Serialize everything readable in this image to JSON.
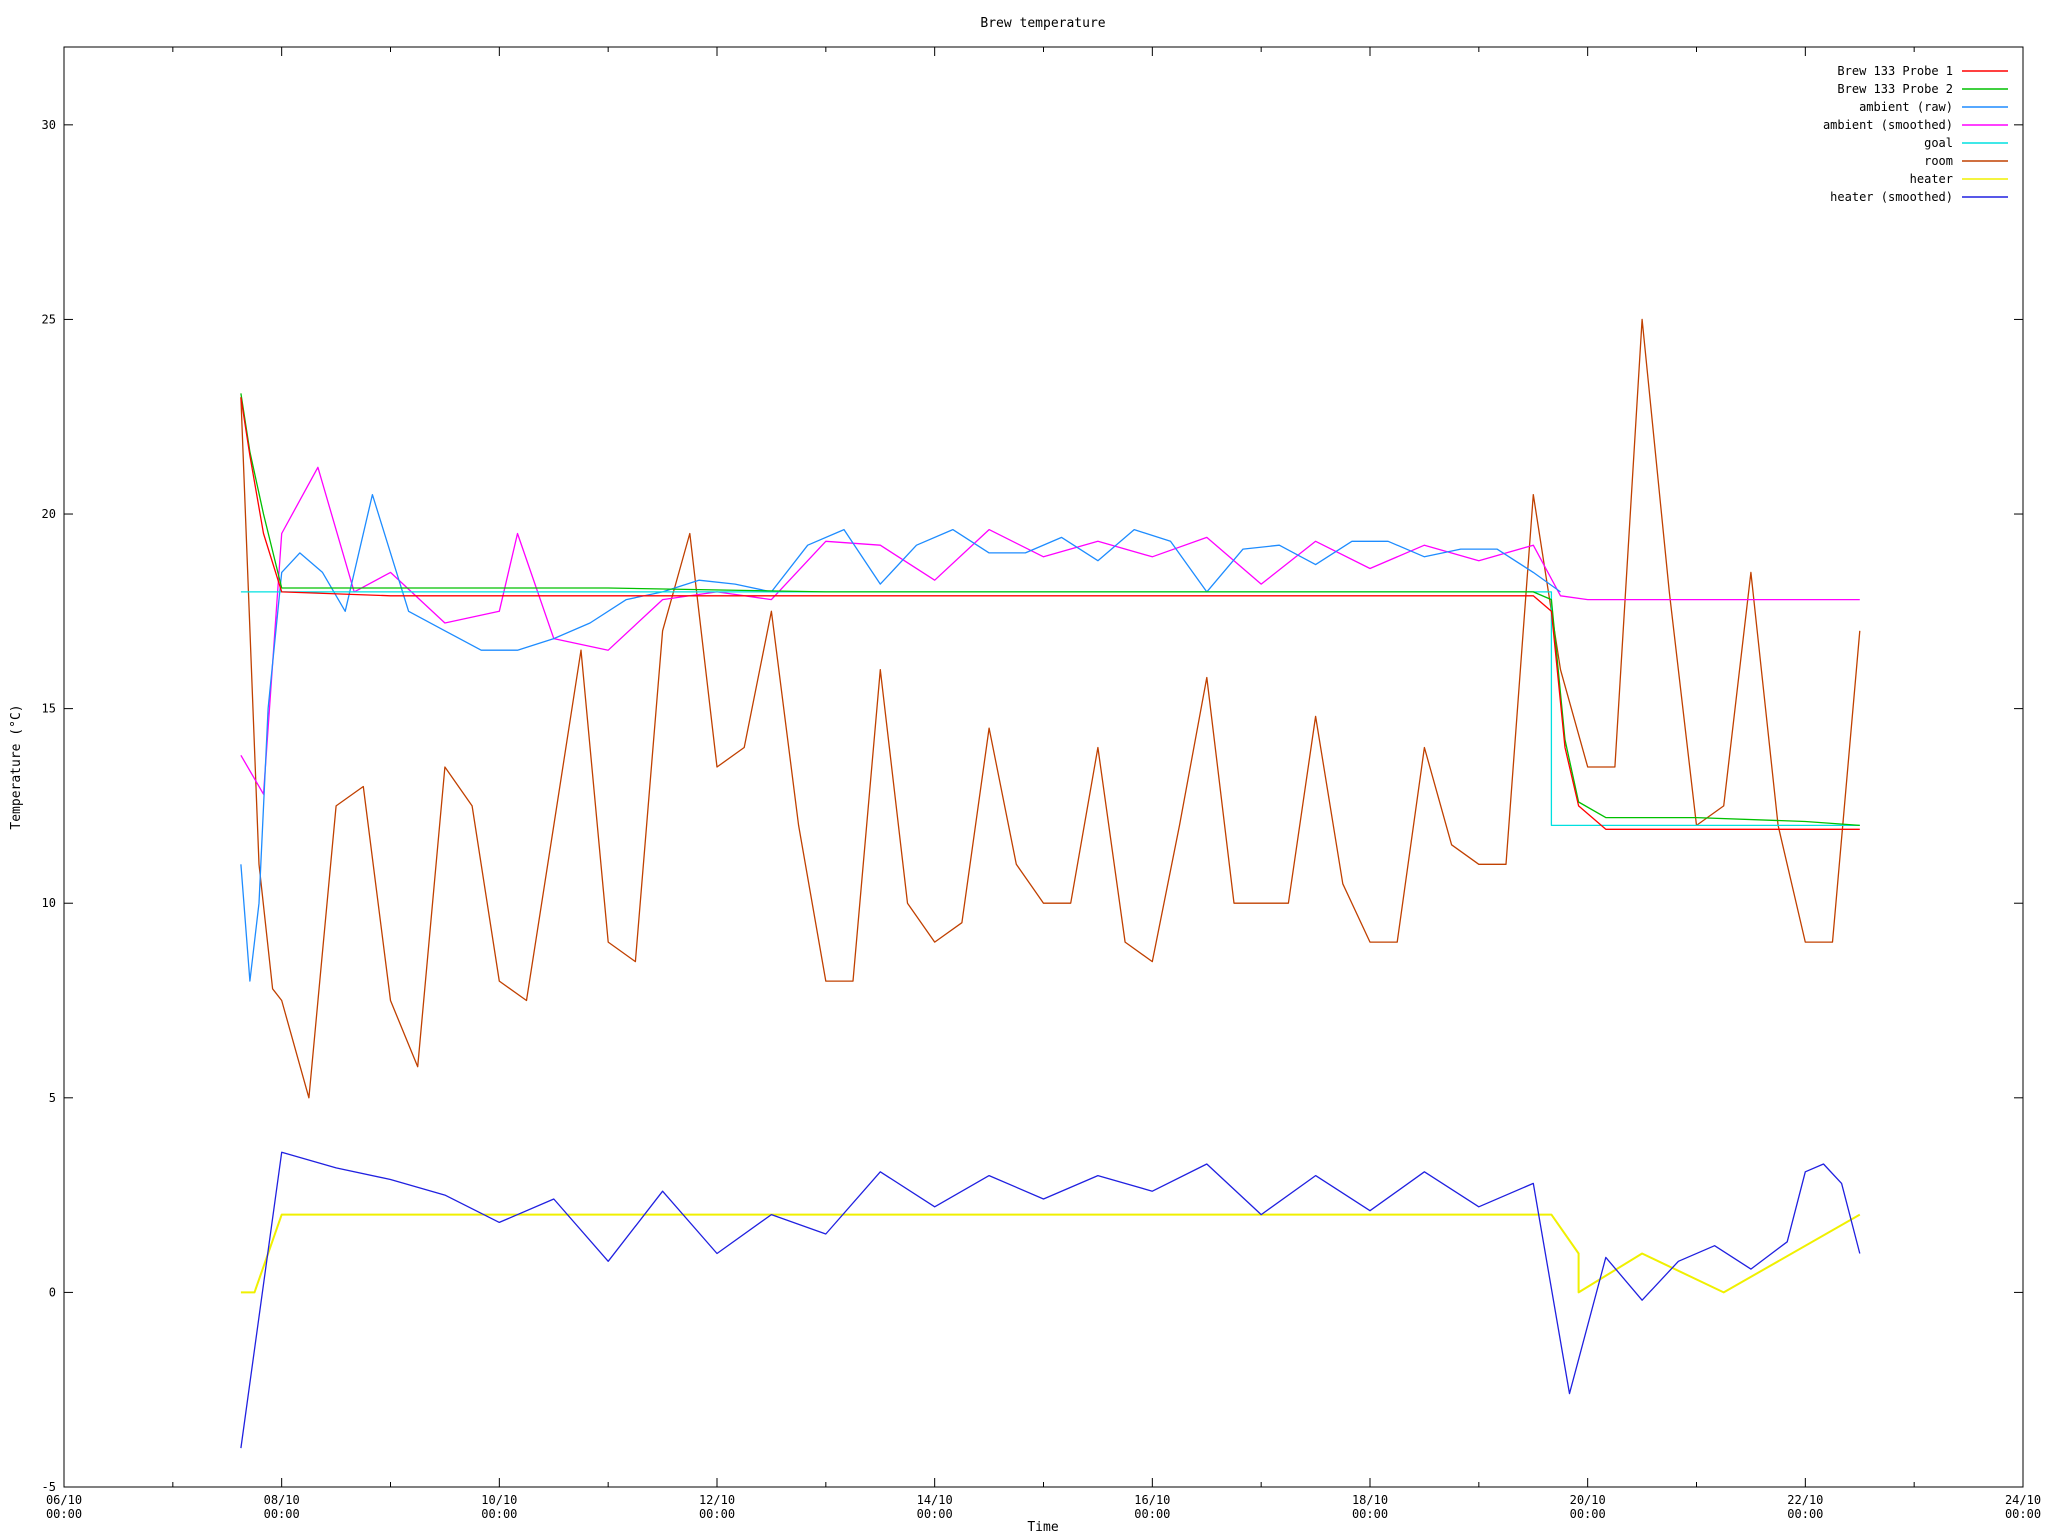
{
  "chart_data": {
    "type": "line",
    "title": "Brew temperature",
    "xlabel": "Time",
    "ylabel": "Temperature (°C)",
    "xlim": [
      "06/10 00:00",
      "24/10 00:00"
    ],
    "ylim": [
      -5,
      32
    ],
    "grid": false,
    "legend_position": "top-right",
    "x_ticks": [
      {
        "date": "06/10",
        "time": "00:00"
      },
      {
        "date": "08/10",
        "time": "00:00"
      },
      {
        "date": "10/10",
        "time": "00:00"
      },
      {
        "date": "12/10",
        "time": "00:00"
      },
      {
        "date": "14/10",
        "time": "00:00"
      },
      {
        "date": "16/10",
        "time": "00:00"
      },
      {
        "date": "18/10",
        "time": "00:00"
      },
      {
        "date": "20/10",
        "time": "00:00"
      },
      {
        "date": "22/10",
        "time": "00:00"
      },
      {
        "date": "24/10",
        "time": "00:00"
      }
    ],
    "y_ticks": [
      -5,
      0,
      5,
      10,
      15,
      20,
      25,
      30
    ],
    "series": [
      {
        "name": "Brew 133 Probe 1",
        "color": "#ff0000",
        "x": [
          "07/10 15:00",
          "07/10 17:00",
          "07/10 20:00",
          "08/10 00:00",
          "09/10 00:00",
          "11/10 00:00",
          "13/10 00:00",
          "15/10 00:00",
          "17/10 00:00",
          "19/10 12:00",
          "19/10 16:00",
          "19/10 19:00",
          "19/10 22:00",
          "20/10 04:00",
          "21/10 00:00",
          "22/10 00:00",
          "22/10 12:00"
        ],
        "y": [
          23.0,
          21.5,
          19.5,
          18.0,
          17.9,
          17.9,
          17.9,
          17.9,
          17.9,
          17.9,
          17.5,
          14.0,
          12.5,
          11.9,
          11.9,
          11.9,
          11.9
        ]
      },
      {
        "name": "Brew 133 Probe 2",
        "color": "#00c000",
        "x": [
          "07/10 15:00",
          "07/10 17:00",
          "07/10 20:00",
          "08/10 00:00",
          "09/10 00:00",
          "11/10 00:00",
          "13/10 00:00",
          "15/10 00:00",
          "17/10 00:00",
          "19/10 12:00",
          "19/10 16:00",
          "19/10 19:00",
          "19/10 22:00",
          "20/10 04:00",
          "21/10 00:00",
          "22/10 00:00",
          "22/10 12:00"
        ],
        "y": [
          23.1,
          21.6,
          20.0,
          18.1,
          18.1,
          18.1,
          18.0,
          18.0,
          18.0,
          18.0,
          17.8,
          14.2,
          12.6,
          12.2,
          12.2,
          12.1,
          12.0
        ]
      },
      {
        "name": "ambient (raw)",
        "color": "#1e8cff",
        "x": [
          "07/10 15:00",
          "07/10 17:00",
          "07/10 19:00",
          "07/10 21:00",
          "08/10 00:00",
          "08/10 04:00",
          "08/10 09:00",
          "08/10 14:00",
          "08/10 20:00",
          "09/10 04:00",
          "09/10 12:00",
          "09/10 20:00",
          "10/10 04:00",
          "10/10 12:00",
          "10/10 20:00",
          "11/10 04:00",
          "11/10 12:00",
          "11/10 20:00",
          "12/10 04:00",
          "12/10 12:00",
          "12/10 20:00",
          "13/10 04:00",
          "13/10 12:00",
          "13/10 20:00",
          "14/10 04:00",
          "14/10 12:00",
          "14/10 20:00",
          "15/10 04:00",
          "15/10 12:00",
          "15/10 20:00",
          "16/10 04:00",
          "16/10 12:00",
          "16/10 20:00",
          "17/10 04:00",
          "17/10 12:00",
          "17/10 20:00",
          "18/10 04:00",
          "18/10 12:00",
          "18/10 20:00",
          "19/10 04:00",
          "19/10 12:00",
          "19/10 18:00"
        ],
        "y": [
          11.0,
          8.0,
          10.0,
          15.0,
          18.5,
          19.0,
          18.5,
          17.5,
          20.5,
          17.5,
          17.0,
          16.5,
          16.5,
          16.8,
          17.2,
          17.8,
          18.0,
          18.3,
          18.2,
          18.0,
          19.2,
          19.6,
          18.2,
          19.2,
          19.6,
          19.0,
          19.0,
          19.4,
          18.8,
          19.6,
          19.3,
          18.0,
          19.1,
          19.2,
          18.7,
          19.3,
          19.3,
          18.9,
          19.1,
          19.1,
          18.5,
          18.0
        ]
      },
      {
        "name": "ambient (smoothed)",
        "color": "#ff00ff",
        "x": [
          "07/10 15:00",
          "07/10 20:00",
          "08/10 00:00",
          "08/10 08:00",
          "08/10 16:00",
          "09/10 00:00",
          "09/10 12:00",
          "10/10 00:00",
          "10/10 04:00",
          "10/10 12:00",
          "11/10 00:00",
          "11/10 12:00",
          "12/10 00:00",
          "12/10 12:00",
          "13/10 00:00",
          "13/10 12:00",
          "14/10 00:00",
          "14/10 12:00",
          "15/10 00:00",
          "15/10 12:00",
          "16/10 00:00",
          "16/10 12:00",
          "17/10 00:00",
          "17/10 12:00",
          "18/10 00:00",
          "18/10 12:00",
          "19/10 00:00",
          "19/10 12:00",
          "19/10 18:00",
          "20/10 00:00",
          "22/10 12:00"
        ],
        "y": [
          13.8,
          12.8,
          19.5,
          21.2,
          18.0,
          18.5,
          17.2,
          17.5,
          19.5,
          16.8,
          16.5,
          17.8,
          18.0,
          17.8,
          19.3,
          19.2,
          18.3,
          19.6,
          18.9,
          19.3,
          18.9,
          19.4,
          18.2,
          19.3,
          18.6,
          19.2,
          18.8,
          19.2,
          17.9,
          17.8,
          17.8
        ]
      },
      {
        "name": "goal",
        "color": "#00e0e0",
        "x": [
          "07/10 15:00",
          "19/10 16:00",
          "19/10 16:00",
          "22/10 12:00"
        ],
        "y": [
          18.0,
          18.0,
          12.0,
          12.0
        ]
      },
      {
        "name": "room",
        "color": "#c04000",
        "x": [
          "07/10 15:00",
          "07/10 19:00",
          "07/10 22:00",
          "08/10 00:00",
          "08/10 06:00",
          "08/10 12:00",
          "08/10 18:00",
          "09/10 00:00",
          "09/10 06:00",
          "09/10 12:00",
          "09/10 18:00",
          "10/10 00:00",
          "10/10 06:00",
          "10/10 12:00",
          "10/10 18:00",
          "11/10 00:00",
          "11/10 06:00",
          "11/10 12:00",
          "11/10 18:00",
          "12/10 00:00",
          "12/10 06:00",
          "12/10 12:00",
          "12/10 18:00",
          "13/10 00:00",
          "13/10 06:00",
          "13/10 12:00",
          "13/10 18:00",
          "14/10 00:00",
          "14/10 06:00",
          "14/10 12:00",
          "14/10 18:00",
          "15/10 00:00",
          "15/10 06:00",
          "15/10 12:00",
          "15/10 18:00",
          "16/10 00:00",
          "16/10 06:00",
          "16/10 12:00",
          "16/10 18:00",
          "17/10 00:00",
          "17/10 06:00",
          "17/10 12:00",
          "17/10 18:00",
          "18/10 00:00",
          "18/10 06:00",
          "18/10 12:00",
          "18/10 18:00",
          "19/10 00:00",
          "19/10 06:00",
          "19/10 12:00",
          "19/10 18:00",
          "20/10 00:00",
          "20/10 06:00",
          "20/10 12:00",
          "20/10 18:00",
          "21/10 00:00",
          "21/10 06:00",
          "21/10 12:00",
          "21/10 18:00",
          "22/10 00:00",
          "22/10 06:00",
          "22/10 12:00"
        ],
        "y": [
          23.0,
          11.0,
          7.8,
          7.5,
          5.0,
          12.5,
          13.0,
          7.5,
          5.8,
          13.5,
          12.5,
          8.0,
          7.5,
          12.0,
          16.5,
          9.0,
          8.5,
          17.0,
          19.5,
          13.5,
          14.0,
          17.5,
          12.0,
          8.0,
          8.0,
          16.0,
          10.0,
          9.0,
          9.5,
          14.5,
          11.0,
          10.0,
          10.0,
          14.0,
          9.0,
          8.5,
          12.0,
          15.8,
          10.0,
          10.0,
          10.0,
          14.8,
          10.5,
          9.0,
          9.0,
          14.0,
          11.5,
          11.0,
          11.0,
          20.5,
          16.0,
          13.5,
          13.5,
          25.0,
          18.0,
          12.0,
          12.5,
          18.5,
          12.0,
          9.0,
          9.0,
          17.0
        ]
      },
      {
        "name": "heater",
        "color": "#f0f000",
        "x": [
          "07/10 15:00",
          "07/10 18:00",
          "07/10 21:00",
          "08/10 00:00",
          "19/10 16:00",
          "19/10 22:00",
          "19/10 22:00",
          "20/10 12:00",
          "21/10 06:00",
          "22/10 12:00"
        ],
        "y": [
          0,
          0,
          1,
          2,
          2,
          1,
          0,
          1,
          0,
          2
        ]
      },
      {
        "name": "heater (smoothed)",
        "color": "#2020e0",
        "x": [
          "07/10 15:00",
          "08/10 00:00",
          "08/10 12:00",
          "09/10 00:00",
          "09/10 12:00",
          "10/10 00:00",
          "10/10 12:00",
          "11/10 00:00",
          "11/10 12:00",
          "12/10 00:00",
          "12/10 12:00",
          "13/10 00:00",
          "13/10 12:00",
          "14/10 00:00",
          "14/10 12:00",
          "15/10 00:00",
          "15/10 12:00",
          "16/10 00:00",
          "16/10 12:00",
          "17/10 00:00",
          "17/10 12:00",
          "18/10 00:00",
          "18/10 12:00",
          "19/10 00:00",
          "19/10 12:00",
          "19/10 20:00",
          "20/10 04:00",
          "20/10 12:00",
          "20/10 20:00",
          "21/10 04:00",
          "21/10 12:00",
          "21/10 20:00",
          "22/10 00:00",
          "22/10 04:00",
          "22/10 08:00",
          "22/10 12:00"
        ],
        "y": [
          -4.0,
          3.6,
          3.2,
          2.9,
          2.5,
          1.8,
          2.4,
          0.8,
          2.6,
          1.0,
          2.0,
          1.5,
          3.1,
          2.2,
          3.0,
          2.4,
          3.0,
          2.6,
          3.3,
          2.0,
          3.0,
          2.1,
          3.1,
          2.2,
          2.8,
          -2.6,
          0.9,
          -0.2,
          0.8,
          1.2,
          0.6,
          1.3,
          3.1,
          3.3,
          2.8,
          1.0
        ]
      }
    ]
  }
}
